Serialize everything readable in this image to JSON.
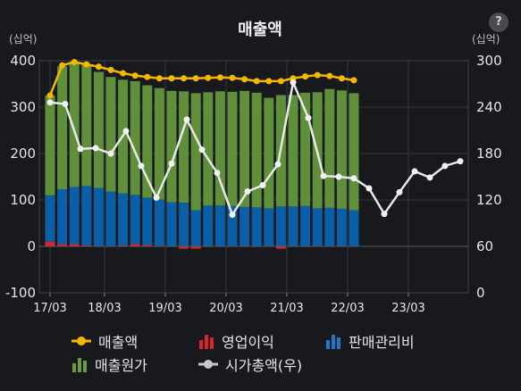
{
  "help_icon": "?",
  "chart_data": {
    "type": "bar",
    "title": "매출액",
    "left_unit": "(십억)",
    "right_unit": "(십억)",
    "ylim_left": [
      -100,
      400
    ],
    "ylim_right": [
      0,
      300
    ],
    "y_ticks_left": [
      "400",
      "300",
      "200",
      "100",
      "0",
      "-100"
    ],
    "y_ticks_right": [
      "300",
      "240",
      "180",
      "120",
      "60",
      "0"
    ],
    "x_tick_labels": [
      "17/03",
      "18/03",
      "19/03",
      "20/03",
      "21/03",
      "22/03",
      "23/03"
    ],
    "grid": true,
    "colors": {
      "매출액": "#f5b800",
      "영업이익": "#e0202a",
      "판매관리비": "#0a5fa8",
      "매출원가": "#5f8f3a",
      "시가총액(우)": "#e8e8e8"
    },
    "series": [
      {
        "name": "매출액",
        "type": "line",
        "axis": "left",
        "values": [
          325,
          390,
          397,
          392,
          387,
          380,
          373,
          368,
          365,
          362,
          362,
          362,
          362,
          363,
          364,
          363,
          360,
          356,
          356,
          356,
          362,
          366,
          369,
          367,
          362,
          358
        ]
      },
      {
        "name": "영업이익",
        "type": "bar",
        "axis": "left",
        "values": [
          10,
          5,
          5,
          2,
          0,
          0,
          2,
          5,
          3,
          1,
          0,
          -5,
          -5,
          0,
          0,
          0,
          0,
          0,
          0,
          -5,
          0,
          0,
          0,
          0,
          0,
          0
        ]
      },
      {
        "name": "판매관리비",
        "type": "bar",
        "axis": "left",
        "values": [
          100,
          118,
          123,
          128,
          126,
          118,
          112,
          106,
          102,
          100,
          95,
          94,
          78,
          88,
          88,
          87,
          85,
          84,
          82,
          86,
          86,
          87,
          82,
          83,
          81,
          78
        ]
      },
      {
        "name": "매출원가",
        "type": "bar",
        "axis": "left",
        "values": [
          215,
          265,
          270,
          262,
          250,
          247,
          245,
          245,
          242,
          240,
          240,
          240,
          252,
          244,
          246,
          246,
          250,
          247,
          238,
          240,
          240,
          244,
          250,
          256,
          255,
          252
        ]
      },
      {
        "name": "시가총액(우)",
        "type": "line",
        "axis": "right",
        "values": [
          246,
          244,
          186,
          187,
          180,
          209,
          164,
          123,
          167,
          224,
          185,
          155,
          101,
          131,
          139,
          166,
          272,
          226,
          151,
          150,
          148,
          135,
          102,
          130,
          157,
          149,
          164,
          170
        ]
      }
    ]
  },
  "legend": [
    {
      "label": "매출액",
      "icon": "line-dot-icon"
    },
    {
      "label": "영업이익",
      "icon": "bar-icon"
    },
    {
      "label": "판매관리비",
      "icon": "bar-icon"
    },
    {
      "label": "매출원가",
      "icon": "bar-icon"
    },
    {
      "label": "시가총액(우)",
      "icon": "line-dot-icon"
    }
  ]
}
